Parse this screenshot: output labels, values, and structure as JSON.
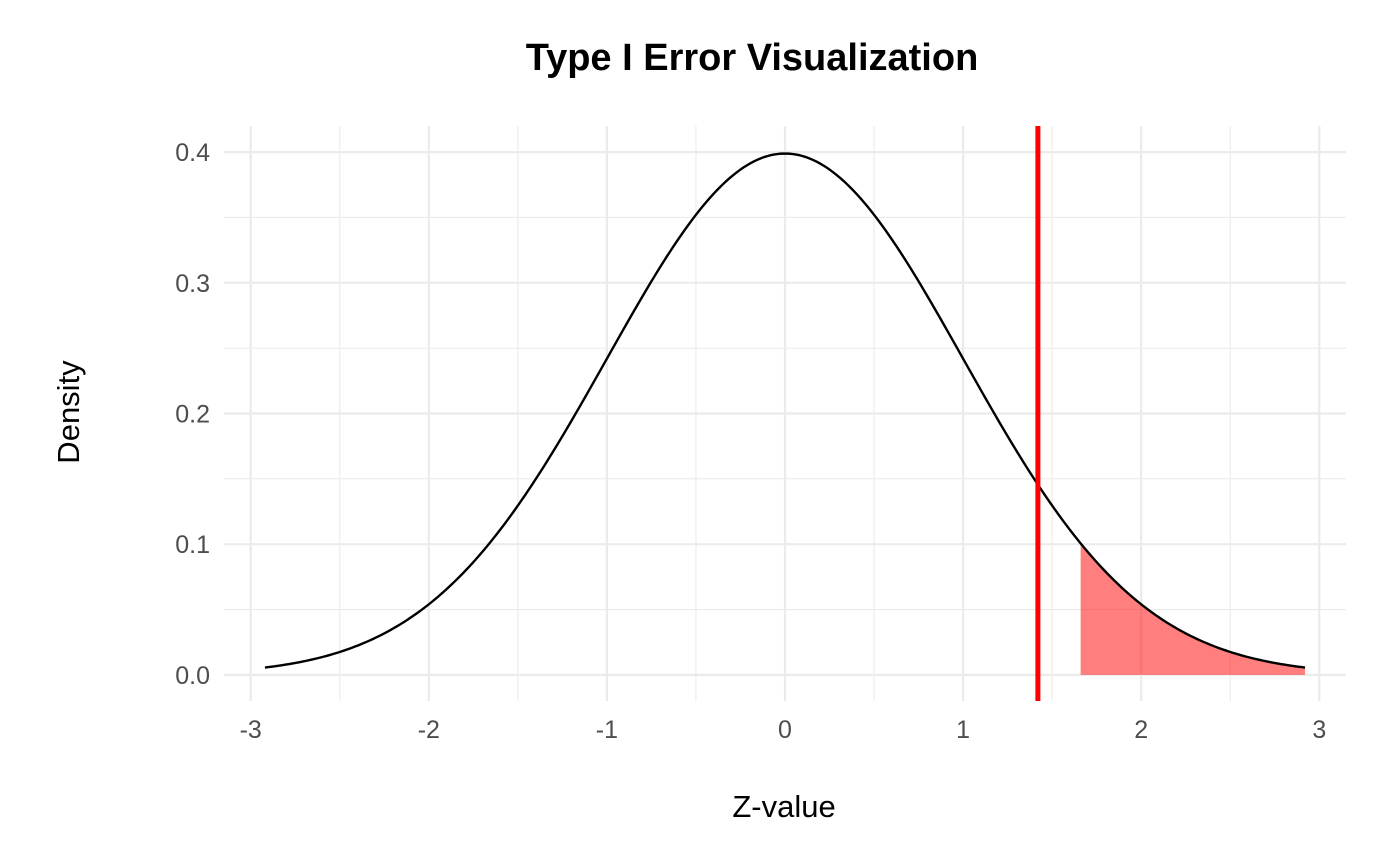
{
  "chart_data": {
    "type": "line",
    "title": "Type I Error Visualization",
    "xlabel": "Z-value",
    "ylabel": "Density",
    "xlim": [
      -3.15,
      3.15
    ],
    "ylim": [
      -0.02,
      0.42
    ],
    "x_ticks": [
      -3,
      -2,
      -1,
      0,
      1,
      2,
      3
    ],
    "x_tick_labels": [
      "-3",
      "-2",
      "-1",
      "0",
      "1",
      "2",
      "3"
    ],
    "y_ticks": [
      0.0,
      0.1,
      0.2,
      0.3,
      0.4
    ],
    "y_tick_labels": [
      "0.0",
      "0.1",
      "0.2",
      "0.3",
      "0.4"
    ],
    "grid": true,
    "series": [
      {
        "kind": "line",
        "distribution": "standard normal density",
        "x": [
          -2.92,
          -2.8,
          -2.6,
          -2.4,
          -2.2,
          -2.0,
          -1.8,
          -1.6,
          -1.4,
          -1.2,
          -1.0,
          -0.8,
          -0.6,
          -0.4,
          -0.2,
          0.0,
          0.2,
          0.4,
          0.6,
          0.8,
          1.0,
          1.2,
          1.4,
          1.6,
          1.8,
          2.0,
          2.2,
          2.4,
          2.6,
          2.8,
          2.92
        ],
        "y": [
          0.0056,
          0.0079,
          0.0136,
          0.0224,
          0.0355,
          0.054,
          0.079,
          0.1109,
          0.1497,
          0.1942,
          0.242,
          0.2897,
          0.3332,
          0.3683,
          0.391,
          0.3989,
          0.391,
          0.3683,
          0.3332,
          0.2897,
          0.242,
          0.1942,
          0.1497,
          0.1109,
          0.079,
          0.054,
          0.0355,
          0.0224,
          0.0136,
          0.0079,
          0.0056
        ],
        "color": "#000000"
      },
      {
        "kind": "area",
        "region": "shaded right tail",
        "x": [
          1.66,
          1.8,
          2.0,
          2.2,
          2.4,
          2.6,
          2.8,
          2.92
        ],
        "y": [
          0.1006,
          0.079,
          0.054,
          0.0355,
          0.0224,
          0.0136,
          0.0079,
          0.0056
        ],
        "color": "#ff0000",
        "opacity": 0.5
      },
      {
        "kind": "vline",
        "x": 1.42,
        "color": "#ff0000"
      }
    ]
  }
}
